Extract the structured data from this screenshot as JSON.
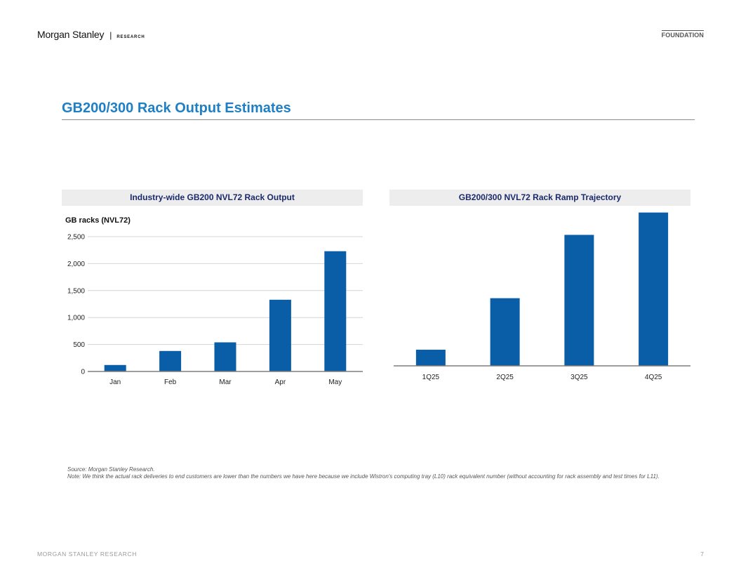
{
  "header": {
    "brand": "Morgan Stanley",
    "separator": "|",
    "section": "RESEARCH",
    "tag": "FOUNDATION"
  },
  "title": "GB200/300 Rack Output Estimates",
  "chart_data": [
    {
      "type": "bar",
      "title": "Industry-wide GB200 NVL72 Rack Output",
      "ylabel": "GB racks (NVL72)",
      "xlabel": "",
      "categories": [
        "Jan",
        "Feb",
        "Mar",
        "Apr",
        "May"
      ],
      "values": [
        120,
        380,
        540,
        1330,
        2230
      ],
      "ylim": [
        0,
        2500
      ],
      "yticks": [
        0,
        500,
        1000,
        1500,
        2000,
        2500
      ],
      "ytick_labels": [
        "0",
        "500",
        "1,000",
        "1,500",
        "2,000",
        "2,500"
      ],
      "grid": true,
      "color": "#0a5ea8"
    },
    {
      "type": "bar",
      "title": "GB200/300 NVL72 Rack Ramp Trajectory",
      "ylabel": "",
      "xlabel": "",
      "categories": [
        "1Q25",
        "2Q25",
        "3Q25",
        "4Q25"
      ],
      "values": [
        260,
        1090,
        2110,
        2470
      ],
      "ylim": [
        0,
        2500
      ],
      "grid": false,
      "color": "#0a5ea8"
    }
  ],
  "notes": {
    "source": "Source: Morgan Stanley Research.",
    "note": "Note: We think the actual rack deliveries to end customers are lower than the numbers we have here because we include Wistron's computing tray (L10) rack equivalent number (without accounting for rack assembly and test times for L11)."
  },
  "footer": {
    "left": "MORGAN STANLEY RESEARCH",
    "page": "7"
  }
}
